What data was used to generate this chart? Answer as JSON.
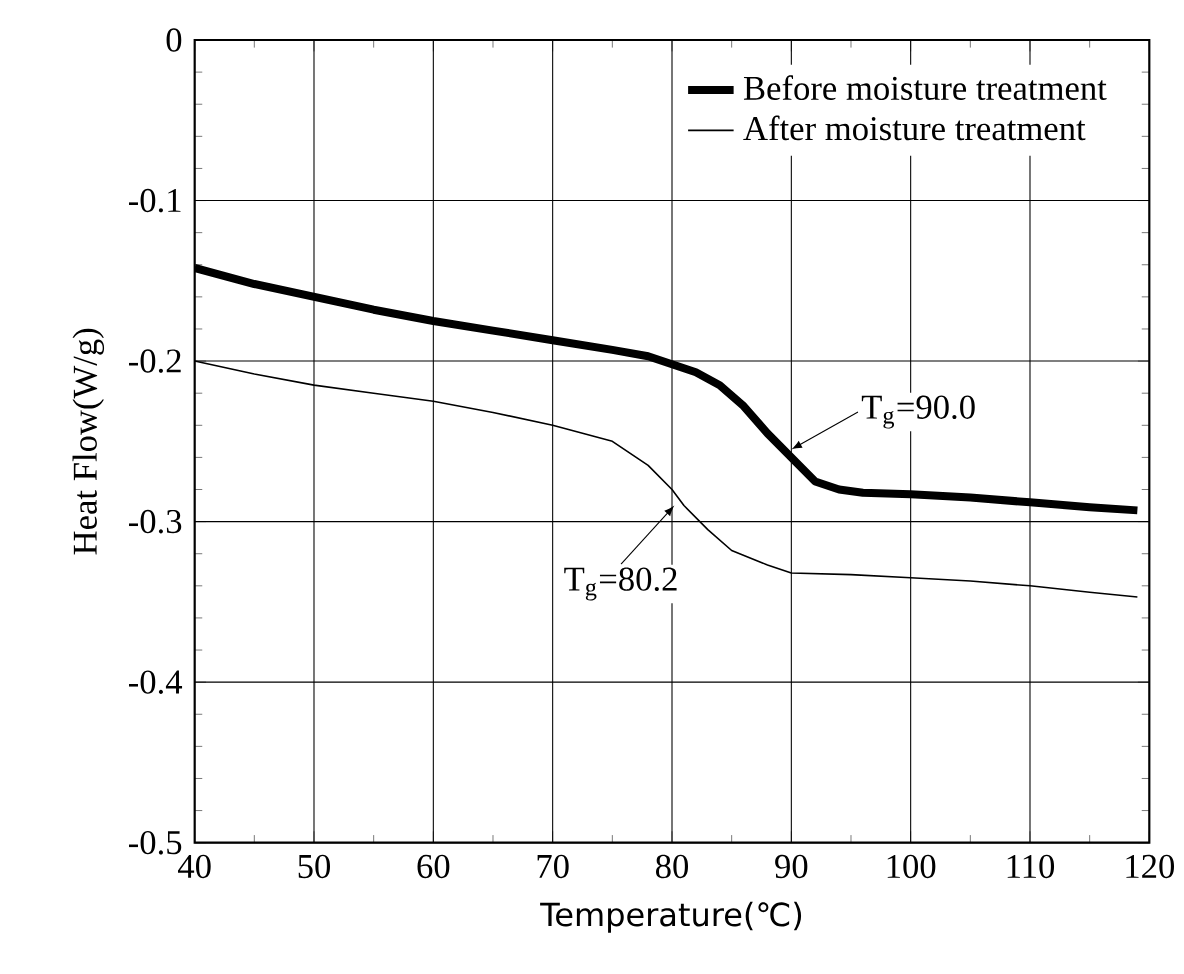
{
  "chart_data": {
    "type": "line",
    "xlabel": "Temperature(℃)",
    "ylabel": "Heat Flow(W/g)",
    "xlim": [
      40,
      120
    ],
    "xticks": [
      40,
      50,
      60,
      70,
      80,
      90,
      100,
      110,
      120
    ],
    "ylim": [
      -0.5,
      0
    ],
    "yticks": [
      -0.5,
      -0.4,
      -0.3,
      -0.2,
      -0.1,
      0
    ],
    "grid": true,
    "legend": "top right",
    "series": [
      {
        "name": "Before moisture treatment",
        "color": "#000000",
        "x": [
          40,
          45,
          50,
          55,
          60,
          65,
          70,
          75,
          78,
          80,
          82,
          84,
          86,
          88,
          90,
          92,
          94,
          96,
          100,
          105,
          110,
          115,
          119
        ],
        "values": [
          -0.142,
          -0.152,
          -0.16,
          -0.168,
          -0.175,
          -0.181,
          -0.187,
          -0.193,
          -0.197,
          -0.202,
          -0.207,
          -0.215,
          -0.228,
          -0.245,
          -0.26,
          -0.275,
          -0.28,
          -0.282,
          -0.283,
          -0.285,
          -0.288,
          -0.291,
          -0.293
        ]
      },
      {
        "name": "After moisture treatment",
        "color": "#000000",
        "x": [
          40,
          45,
          50,
          55,
          60,
          65,
          70,
          75,
          78,
          80,
          81,
          83,
          85,
          88,
          90,
          95,
          100,
          105,
          110,
          115,
          119
        ],
        "values": [
          -0.2,
          -0.208,
          -0.215,
          -0.22,
          -0.225,
          -0.232,
          -0.24,
          -0.25,
          -0.265,
          -0.28,
          -0.29,
          -0.305,
          -0.318,
          -0.327,
          -0.332,
          -0.333,
          -0.335,
          -0.337,
          -0.34,
          -0.344,
          -0.347
        ]
      }
    ],
    "annotations": [
      {
        "text": "T$_{g}$=90.0",
        "x": 90,
        "y": -0.255
      },
      {
        "text": "T$_{g}$=80.2",
        "x": 80.2,
        "y": -0.29
      }
    ]
  }
}
